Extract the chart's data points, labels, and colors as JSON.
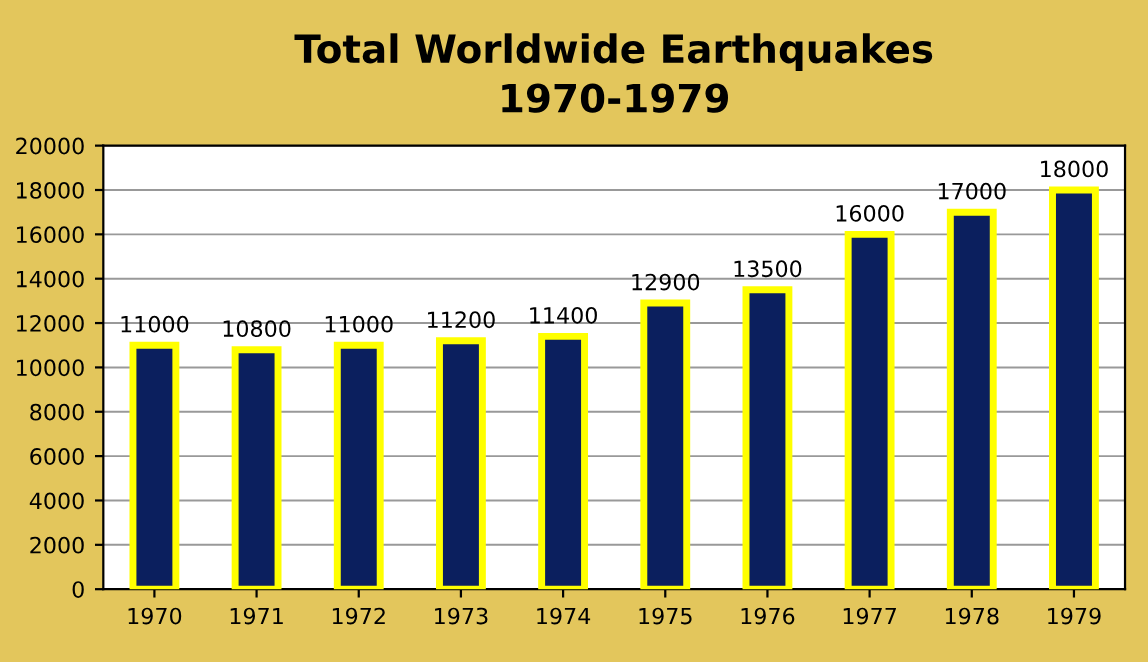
{
  "chart_data": {
    "type": "bar",
    "title": "Total Worldwide Earthquakes\n1970-1979",
    "categories": [
      "1970",
      "1971",
      "1972",
      "1973",
      "1974",
      "1975",
      "1976",
      "1977",
      "1978",
      "1979"
    ],
    "values": [
      11000,
      10800,
      11000,
      11200,
      11400,
      12900,
      13500,
      16000,
      17000,
      18000
    ],
    "color": "#0b1f5e",
    "ylim": [
      0,
      20000
    ],
    "yticks": [
      0,
      2000,
      4000,
      6000,
      8000,
      10000,
      12000,
      14000,
      16000,
      18000,
      20000
    ],
    "grid": "y",
    "data_labels": true
  }
}
